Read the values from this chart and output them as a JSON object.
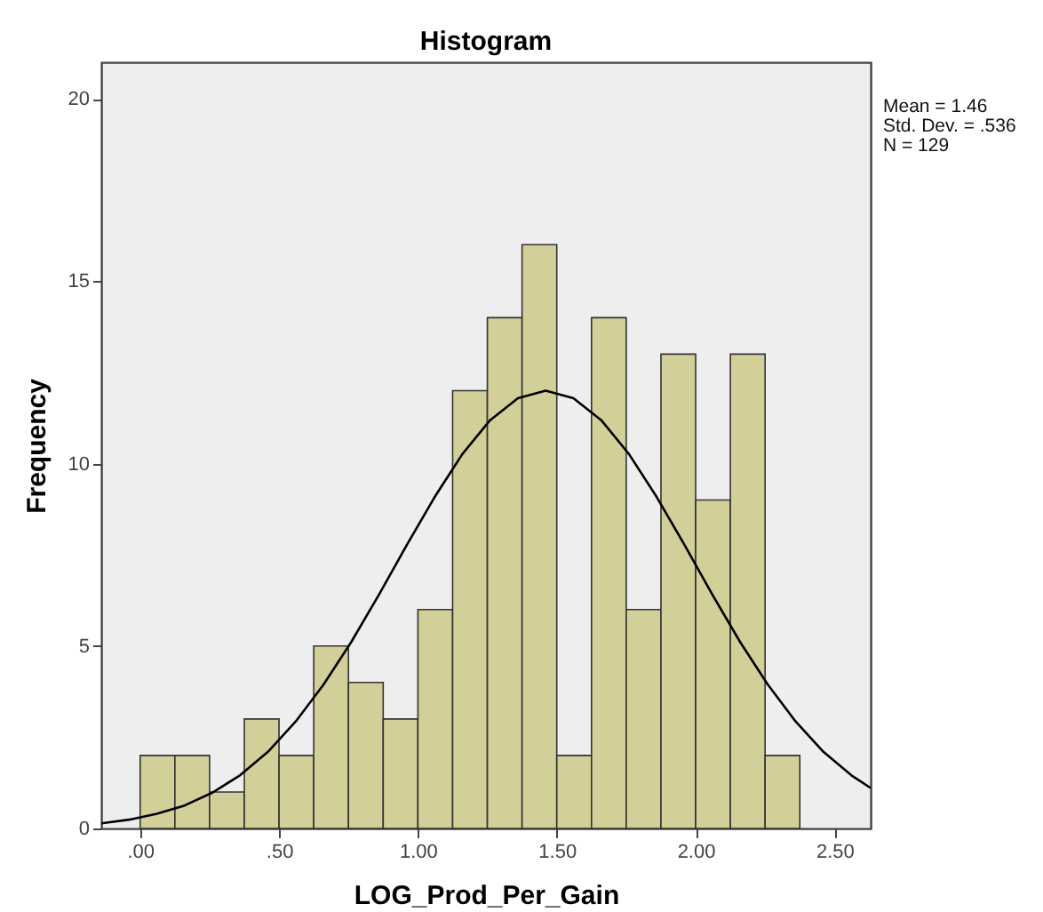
{
  "chart_data": {
    "type": "histogram",
    "title": "Histogram",
    "xlabel": "LOG_Prod_Per_Gain",
    "ylabel": "Frequency",
    "annotations": [
      "Mean = 1.46",
      "Std. Dev. = .536",
      "N = 129"
    ],
    "bins": [
      0,
      0.125,
      0.25,
      0.375,
      0.5,
      0.625,
      0.75,
      0.875,
      1,
      1.125,
      1.25,
      1.375,
      1.5,
      1.625,
      1.75,
      1.875,
      2,
      2.125,
      2.25,
      2.375
    ],
    "values": [
      2,
      2,
      1,
      3,
      2,
      5,
      4,
      3,
      6,
      12,
      14,
      16,
      2,
      14,
      6,
      13,
      9,
      13,
      2
    ],
    "color": "#d3cf98",
    "series": [
      {
        "type": "line",
        "color": "#000000",
        "x": [
          -0.14,
          -0.04,
          0.06,
          0.16,
          0.26,
          0.36,
          0.46,
          0.56,
          0.66,
          0.76,
          0.86,
          0.96,
          1.06,
          1.16,
          1.26,
          1.36,
          1.46,
          1.56,
          1.66,
          1.76,
          1.86,
          1.96,
          2.06,
          2.16,
          2.26,
          2.36,
          2.46,
          2.56,
          2.63
        ],
        "values": [
          0.14,
          0.24,
          0.4,
          0.63,
          0.98,
          1.46,
          2.1,
          2.93,
          3.94,
          5.11,
          6.41,
          7.77,
          9.08,
          10.26,
          11.19,
          11.79,
          12.0,
          11.79,
          11.19,
          10.26,
          9.08,
          7.77,
          6.41,
          5.11,
          3.94,
          2.93,
          2.1,
          1.46,
          1.11
        ]
      }
    ],
    "xlim": [
      -0.14,
      2.63
    ],
    "ylim": [
      0,
      21
    ],
    "xticks": [
      {
        "value": 0,
        "label": ".00"
      },
      {
        "value": 0.5,
        "label": ".50"
      },
      {
        "value": 1,
        "label": "1.00"
      },
      {
        "value": 1.5,
        "label": "1.50"
      },
      {
        "value": 2,
        "label": "2.00"
      },
      {
        "value": 2.5,
        "label": "2.50"
      }
    ],
    "yticks": [
      0,
      5,
      10,
      15,
      20
    ],
    "grid": false
  }
}
